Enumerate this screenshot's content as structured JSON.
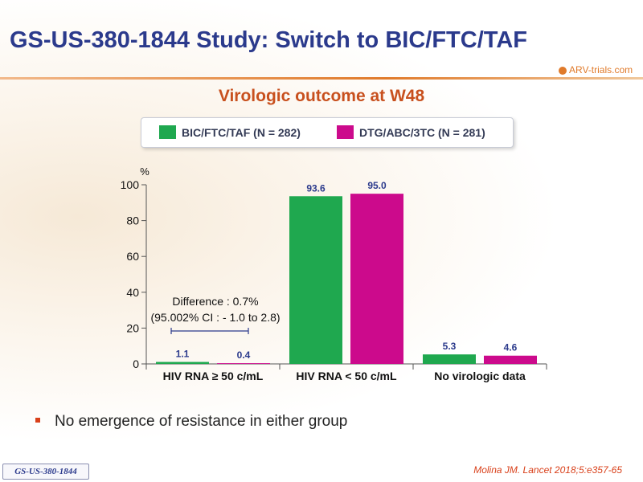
{
  "slide": {
    "title": "GS-US-380-1844 Study: Switch to BIC/FTC/TAF",
    "logo_text": "ARV-trials.com",
    "subtitle": "Virologic outcome at W48",
    "bullet": "No emergence of resistance in either group",
    "citation": "Molina JM. Lancet 2018;5:e357-65",
    "study_badge": "GS-US-380-1844"
  },
  "legend": [
    {
      "label": "BIC/FTC/TAF  (N = 282)",
      "color": "#1fa84f"
    },
    {
      "label": "DTG/ABC/3TC  (N = 281)",
      "color": "#cc0a8c"
    }
  ],
  "chart_data": {
    "type": "bar",
    "ylabel": "%",
    "ylim": [
      0,
      100
    ],
    "yticks": [
      "0",
      "20",
      "40",
      "60",
      "80",
      "100"
    ],
    "categories": [
      "HIV RNA ≥ 50 c/mL",
      "HIV RNA < 50 c/mL",
      "No virologic data"
    ],
    "series": [
      {
        "name": "BIC/FTC/TAF  (N = 282)",
        "color": "#1fa84f",
        "values": [
          1.1,
          93.6,
          5.3
        ],
        "labels": [
          "1.1",
          "93.6",
          "5.3"
        ]
      },
      {
        "name": "DTG/ABC/3TC  (N = 281)",
        "color": "#cc0a8c",
        "values": [
          0.4,
          95.0,
          4.6
        ],
        "labels": [
          "0.4",
          "95.0",
          "4.6"
        ]
      }
    ],
    "annotation": {
      "lines": [
        "Difference : 0.7%",
        "(95.002% CI : - 1.0 to 2.8)"
      ]
    }
  }
}
